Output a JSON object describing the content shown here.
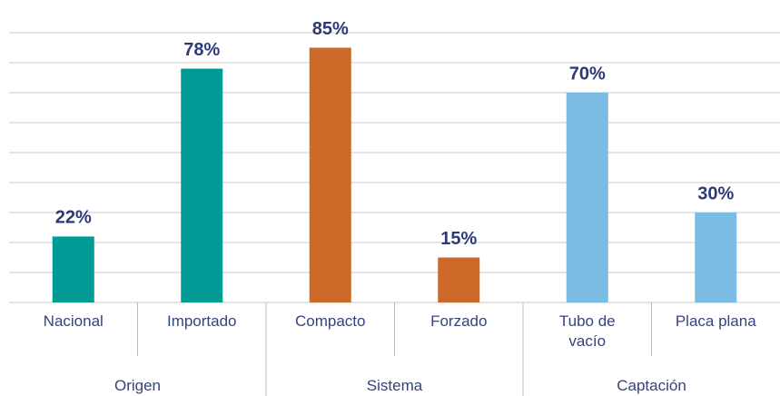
{
  "chart_data": {
    "type": "bar",
    "ylim": [
      0,
      90
    ],
    "yticks": [
      0,
      10,
      20,
      30,
      40,
      50,
      60,
      70,
      80,
      90
    ],
    "grid": true,
    "groups": [
      {
        "name": "Origen",
        "color": "#009b94",
        "categories": [
          "Nacional",
          "Importado"
        ],
        "values": [
          22,
          78
        ],
        "value_labels": [
          "22%",
          "78%"
        ]
      },
      {
        "name": "Sistema",
        "color": "#cc6828",
        "categories": [
          "Compacto",
          "Forzado"
        ],
        "values": [
          85,
          15
        ],
        "value_labels": [
          "85%",
          "15%"
        ]
      },
      {
        "name": "Captación",
        "color": "#7bbce5",
        "categories": [
          "Tubo de vacío",
          "Placa plana"
        ],
        "values": [
          70,
          30
        ],
        "value_labels": [
          "70%",
          "30%"
        ]
      }
    ]
  }
}
